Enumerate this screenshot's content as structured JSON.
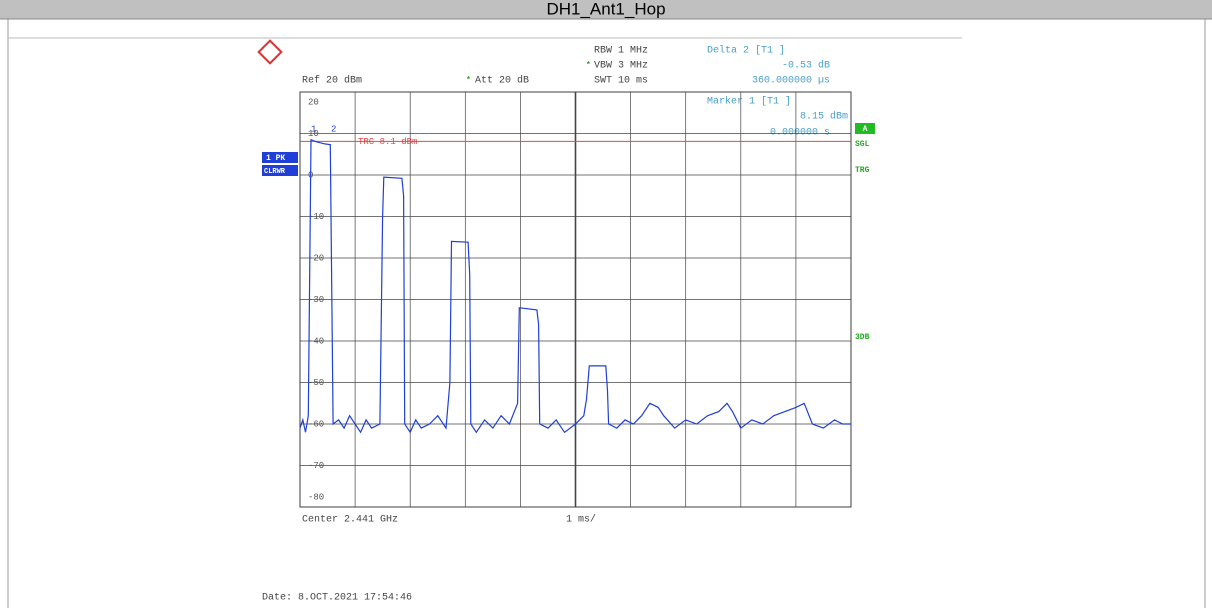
{
  "header": {
    "title": "DH1_Ant1_Hop"
  },
  "chart_data": {
    "type": "line",
    "settings": {
      "rbw": "RBW 1 MHz",
      "vbw": "VBW 3 MHz",
      "swt": "SWT 10 ms",
      "ref": "Ref 20 dBm",
      "att": "Att 20 dB"
    },
    "delta": {
      "name": "Delta 2 [T1 ]",
      "level": "-0.53 dB",
      "time": "360.000000 µs"
    },
    "marker": {
      "name": "Marker 1 [T1 ]",
      "level": "8.15 dBm",
      "time": "0.000000 s"
    },
    "marker_labels": [
      "1",
      "2"
    ],
    "trigger": {
      "label": "TRG 8.1 dBm",
      "value": 8.1
    },
    "side_labels": {
      "trace": "1 PK",
      "mode": "CLRWR",
      "a": "A",
      "sgl": "SGL",
      "trg": "TRG",
      "db": "3DB"
    },
    "center": "Center 2.441 GHz",
    "span": "1 ms/",
    "date": "Date: 8.OCT.2021  17:54:46",
    "color": "#1f3fd6",
    "xlim": [
      0,
      10
    ],
    "xticks": [
      0,
      1,
      2,
      3,
      4,
      5,
      6,
      7,
      8,
      9,
      10
    ],
    "ylim": [
      -80,
      20
    ],
    "yticks": [
      -80,
      -70,
      -60,
      -50,
      -40,
      -30,
      -20,
      -10,
      0,
      10,
      20
    ],
    "grid": true,
    "x": [
      0,
      0.05,
      0.1,
      0.15,
      0.2,
      0.3,
      0.45,
      0.55,
      0.6,
      0.7,
      0.8,
      0.9,
      1.0,
      1.1,
      1.2,
      1.3,
      1.45,
      1.5,
      1.52,
      1.85,
      1.88,
      1.9,
      2.0,
      2.1,
      2.2,
      2.35,
      2.5,
      2.65,
      2.72,
      2.75,
      3.05,
      3.08,
      3.1,
      3.2,
      3.35,
      3.5,
      3.65,
      3.8,
      3.95,
      3.98,
      4.3,
      4.33,
      4.35,
      4.5,
      4.65,
      4.8,
      5.0,
      5.15,
      5.2,
      5.25,
      5.55,
      5.58,
      5.6,
      5.75,
      5.9,
      6.05,
      6.2,
      6.35,
      6.5,
      6.6,
      6.8,
      7.0,
      7.2,
      7.4,
      7.6,
      7.75,
      7.85,
      8.0,
      8.2,
      8.4,
      8.6,
      8.8,
      9.0,
      9.15,
      9.3,
      9.5,
      9.7,
      9.85,
      10
    ],
    "values": [
      -61,
      -59,
      -62,
      -58,
      8.5,
      8,
      7.5,
      7.3,
      -60,
      -59,
      -61,
      -58,
      -60,
      -62,
      -59,
      -61,
      -60,
      -10,
      -0.5,
      -0.8,
      -5,
      -60,
      -62,
      -59,
      -61,
      -60,
      -58,
      -61,
      -50,
      -16,
      -16.2,
      -24,
      -60,
      -62,
      -59,
      -61,
      -58,
      -60,
      -55,
      -32,
      -32.5,
      -36,
      -60,
      -61,
      -59,
      -62,
      -60,
      -58,
      -54,
      -46,
      -46,
      -52,
      -60,
      -61,
      -59,
      -60,
      -58,
      -55,
      -56,
      -58,
      -61,
      -59,
      -60,
      -58,
      -57,
      -55,
      -57,
      -61,
      -59,
      -60,
      -58,
      -57,
      -56,
      -55,
      -60,
      -61,
      -59,
      -60,
      -60
    ]
  }
}
